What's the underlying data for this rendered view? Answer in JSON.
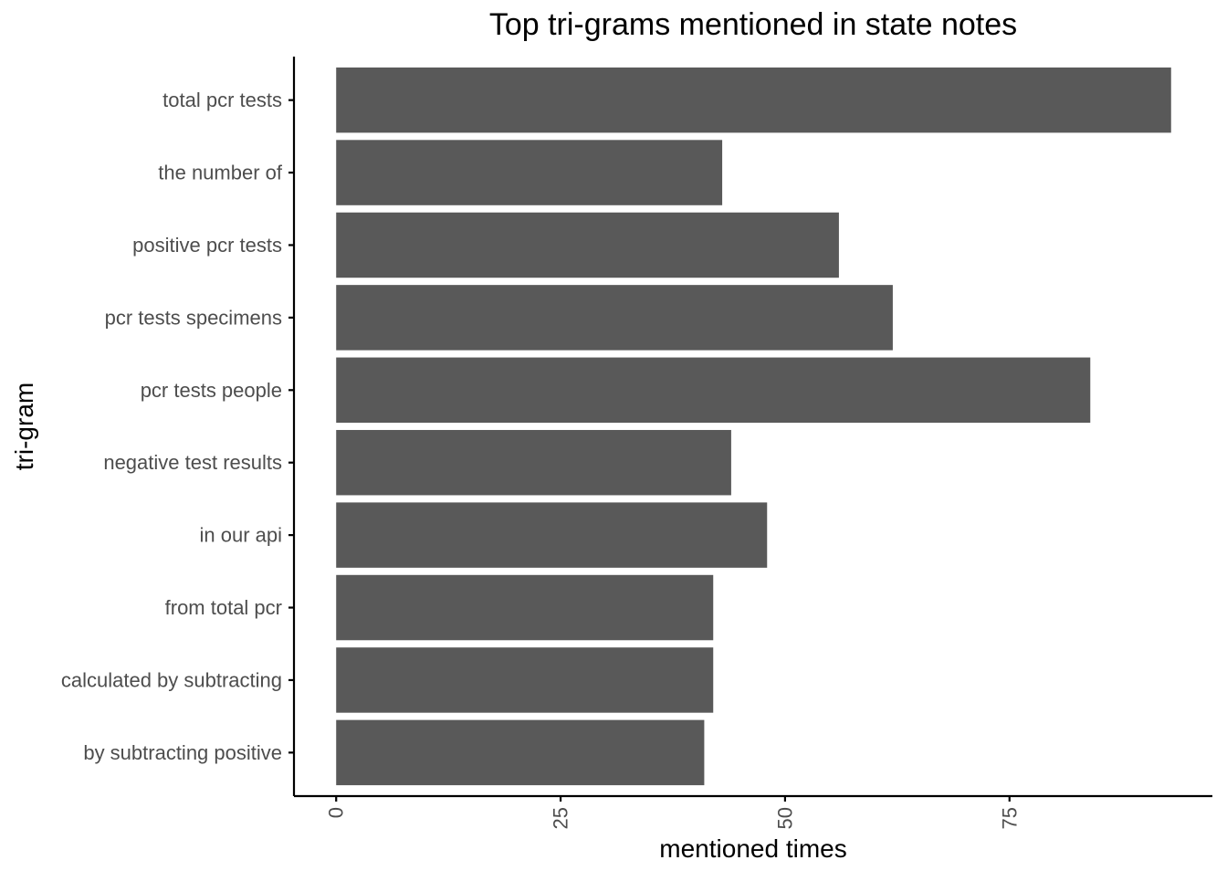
{
  "chart_data": {
    "type": "bar",
    "orientation": "horizontal",
    "title": "Top tri-grams mentioned in state notes",
    "xlabel": "mentioned times",
    "ylabel": "tri-gram",
    "categories": [
      "total pcr tests",
      "the number of",
      "positive pcr tests",
      "pcr tests specimens",
      "pcr tests people",
      "negative test results",
      "in our api",
      "from total pcr",
      "calculated by subtracting",
      "by subtracting positive"
    ],
    "values": [
      93,
      43,
      56,
      62,
      84,
      44,
      48,
      42,
      42,
      41
    ],
    "xlim": [
      -4.7,
      97.6
    ],
    "xticks": [
      0,
      25,
      50,
      75
    ],
    "xtick_labels": [
      "0",
      "25",
      "50",
      "75"
    ],
    "grid": false,
    "legend": "none",
    "bar_color": "#595959"
  }
}
